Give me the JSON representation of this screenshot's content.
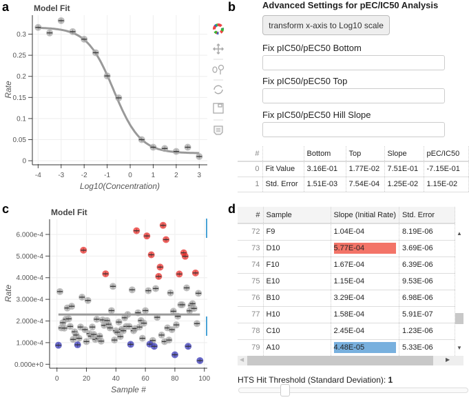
{
  "panels": {
    "a": "a",
    "b": "b",
    "c": "c",
    "d": "d"
  },
  "colors": {
    "highlight_high": "#f37468",
    "highlight_low": "#78b0de",
    "point_gray": "#aaaaaa",
    "point_red": "#e8322d",
    "point_blue": "#3b3bb8",
    "toolbar_active": "#4aa3d6"
  },
  "toolbar": {
    "icons": [
      "bokeh-logo-icon",
      "pan-icon",
      "wheel-zoom-icon",
      "reset-icon",
      "save-icon",
      "hover-icon"
    ]
  },
  "advanced": {
    "title": "Advanced Settings for pEC/IC50 Analysis",
    "transform_button": "transform x-axis to Log10 scale",
    "bottom_label": "Fix pIC50/pEC50 Bottom",
    "bottom_value": "",
    "top_label": "Fix pIC50/pEC50 Top",
    "top_value": "",
    "hill_label": "Fix pIC50/pEC50 Hill Slope",
    "hill_value": "",
    "table": {
      "headers": [
        "#",
        "",
        "Bottom",
        "Top",
        "Slope",
        "pEC/IC50"
      ],
      "rows": [
        [
          "0",
          "Fit Value",
          "3.16E-01",
          "1.77E-02",
          "7.51E-01",
          "-7.15E-01"
        ],
        [
          "1",
          "Std. Error",
          "1.51E-03",
          "7.54E-04",
          "1.25E-02",
          "1.15E-02"
        ]
      ]
    }
  },
  "samples_table": {
    "headers": [
      "#",
      "Sample",
      "Slope (Initial Rate)",
      "Std. Error"
    ],
    "rows": [
      {
        "i": "72",
        "s": "F9",
        "slope": "1.04E-04",
        "err": "8.19E-06",
        "hl": ""
      },
      {
        "i": "73",
        "s": "D10",
        "slope": "5.77E-04",
        "err": "3.69E-06",
        "hl": "high"
      },
      {
        "i": "74",
        "s": "F10",
        "slope": "1.67E-04",
        "err": "6.39E-06",
        "hl": ""
      },
      {
        "i": "75",
        "s": "E10",
        "slope": "1.15E-04",
        "err": "9.53E-06",
        "hl": ""
      },
      {
        "i": "76",
        "s": "B10",
        "slope": "3.29E-04",
        "err": "6.98E-06",
        "hl": ""
      },
      {
        "i": "77",
        "s": "H10",
        "slope": "1.58E-04",
        "err": "5.91E-07",
        "hl": ""
      },
      {
        "i": "78",
        "s": "C10",
        "slope": "2.45E-04",
        "err": "1.23E-06",
        "hl": ""
      },
      {
        "i": "79",
        "s": "A10",
        "slope": "4.48E-05",
        "err": "5.33E-06",
        "hl": "low"
      }
    ]
  },
  "threshold": {
    "label": "HTS Hit Threshold (Standard Deviation):",
    "value": "1",
    "slider_fraction": 0.2
  },
  "chart_data": [
    {
      "type": "scatter",
      "title": "Model Fit",
      "xlabel": "Log10(Concentration)",
      "ylabel": "Rate",
      "xlim": [
        -4.25,
        3.35
      ],
      "ylim": [
        -0.008,
        0.345
      ],
      "xticks": [
        "-4",
        "-3",
        "-2",
        "-1",
        "0",
        "1",
        "2",
        "3"
      ],
      "yticks": [
        "0",
        "0.05",
        "0.1",
        "0.15",
        "0.2",
        "0.25",
        "0.3"
      ],
      "x": [
        -4,
        -3.5,
        -3,
        -2.5,
        -2,
        -1.5,
        -1,
        -0.5,
        0.5,
        1,
        1.5,
        2,
        2.5,
        3
      ],
      "y": [
        0.316,
        0.303,
        0.332,
        0.306,
        0.288,
        0.256,
        0.201,
        0.149,
        0.05,
        0.032,
        0.029,
        0.022,
        0.032,
        0.01
      ],
      "fit": {
        "bottom": 0.316,
        "top": 0.0177,
        "slope": 0.751,
        "logec50": -0.715
      }
    },
    {
      "type": "scatter",
      "title": "Model Fit",
      "xlabel": "Sample #",
      "ylabel": "Rate",
      "xlim": [
        -5,
        102
      ],
      "ylim": [
        -0.15,
        6.7
      ],
      "yunit": "e-4",
      "xticks": [
        "0",
        "20",
        "40",
        "60",
        "80",
        "100"
      ],
      "yticks": [
        "0.000e+0",
        "1.000e-4",
        "2.000e-4",
        "3.000e-4",
        "4.000e-4",
        "5.000e-4",
        "6.000e-4"
      ],
      "mean": 2.3,
      "red": [
        [
          18,
          5.27
        ],
        [
          33,
          4.18
        ],
        [
          54,
          6.17
        ],
        [
          61,
          5.93
        ],
        [
          64,
          5.06
        ],
        [
          69,
          4.06
        ],
        [
          70,
          4.49
        ],
        [
          72,
          6.42
        ],
        [
          74,
          5.76
        ],
        [
          83,
          4.17
        ],
        [
          86,
          5.15
        ],
        [
          87,
          4.99
        ],
        [
          94,
          4.22
        ]
      ],
      "blue": [
        [
          1,
          0.88
        ],
        [
          14,
          0.9
        ],
        [
          50,
          0.92
        ],
        [
          63,
          0.93
        ],
        [
          66,
          0.83
        ],
        [
          80,
          0.44
        ],
        [
          89,
          0.83
        ],
        [
          97,
          0.17
        ]
      ],
      "gray": [
        [
          2,
          3.36
        ],
        [
          3,
          1.68
        ],
        [
          4,
          1.92
        ],
        [
          5,
          1.67
        ],
        [
          6,
          2.08
        ],
        [
          7,
          2.6
        ],
        [
          8,
          2.1
        ],
        [
          9,
          1.75
        ],
        [
          10,
          2.68
        ],
        [
          11,
          1.15
        ],
        [
          12,
          1.5
        ],
        [
          13,
          1.35
        ],
        [
          15,
          1.2
        ],
        [
          16,
          1.72
        ],
        [
          17,
          3.1
        ],
        [
          19,
          1.6
        ],
        [
          20,
          1.05
        ],
        [
          21,
          2.95
        ],
        [
          22,
          1.42
        ],
        [
          23,
          1.3
        ],
        [
          24,
          1.72
        ],
        [
          25,
          1.38
        ],
        [
          26,
          1.15
        ],
        [
          27,
          2.08
        ],
        [
          28,
          1.2
        ],
        [
          29,
          1.3
        ],
        [
          30,
          1.07
        ],
        [
          31,
          2.05
        ],
        [
          32,
          1.8
        ],
        [
          34,
          2.02
        ],
        [
          35,
          1.85
        ],
        [
          36,
          1.68
        ],
        [
          37,
          2.48
        ],
        [
          38,
          3.6
        ],
        [
          39,
          1.12
        ],
        [
          40,
          1.55
        ],
        [
          41,
          1.48
        ],
        [
          42,
          1.95
        ],
        [
          43,
          1.28
        ],
        [
          44,
          1.62
        ],
        [
          45,
          1.55
        ],
        [
          46,
          2.15
        ],
        [
          47,
          1.75
        ],
        [
          48,
          2.3
        ],
        [
          49,
          1.75
        ],
        [
          51,
          3.44
        ],
        [
          52,
          1.55
        ],
        [
          53,
          1.65
        ],
        [
          55,
          2.38
        ],
        [
          56,
          1.72
        ],
        [
          57,
          2.02
        ],
        [
          58,
          1.2
        ],
        [
          59,
          1.9
        ],
        [
          60,
          2.48
        ],
        [
          62,
          3.4
        ],
        [
          65,
          1.1
        ],
        [
          67,
          3.5
        ],
        [
          68,
          2.17
        ],
        [
          71,
          1.35
        ],
        [
          73,
          1.05
        ],
        [
          75,
          1.68
        ],
        [
          76,
          1.12
        ],
        [
          77,
          3.3
        ],
        [
          78,
          1.6
        ],
        [
          79,
          2.45
        ],
        [
          81,
          1.82
        ],
        [
          82,
          2.22
        ],
        [
          84,
          2.75
        ],
        [
          85,
          2.75
        ],
        [
          88,
          3.53
        ],
        [
          90,
          2.47
        ],
        [
          91,
          2.72
        ],
        [
          92,
          2.8
        ],
        [
          93,
          2.58
        ],
        [
          95,
          1.88
        ],
        [
          96,
          3.28
        ]
      ]
    }
  ]
}
